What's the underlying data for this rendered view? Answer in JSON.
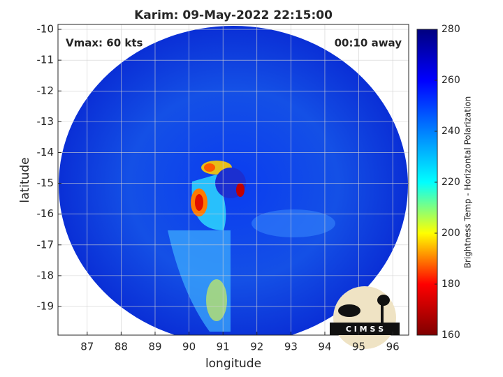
{
  "chart_data": {
    "type": "image",
    "title": "Karim: 09-May-2022 22:15:00",
    "xlabel": "longitude",
    "ylabel": "latitude",
    "annotations": [
      "Vmax: 60 kts",
      "00:10 away"
    ],
    "xlim": [
      86.14,
      96.47
    ],
    "ylim": [
      -19.93,
      -9.84
    ],
    "xticks": [
      87,
      88,
      89,
      90,
      91,
      92,
      93,
      94,
      95,
      96
    ],
    "yticks": [
      -19,
      -18,
      -17,
      -16,
      -15,
      -14,
      -13,
      -12,
      -11,
      -10
    ],
    "grid": true,
    "colorbar": {
      "label": "Brightness Temp - Horizontal Polarization",
      "lim": [
        160,
        280
      ],
      "ticks": [
        160,
        180,
        200,
        220,
        240,
        260,
        280
      ],
      "colormap": [
        "#7f0000",
        "#ff0000",
        "#ffff00",
        "#00ffff",
        "#0080ff",
        "#0000ff",
        "#00007f"
      ]
    },
    "logo": "C I M S S"
  }
}
